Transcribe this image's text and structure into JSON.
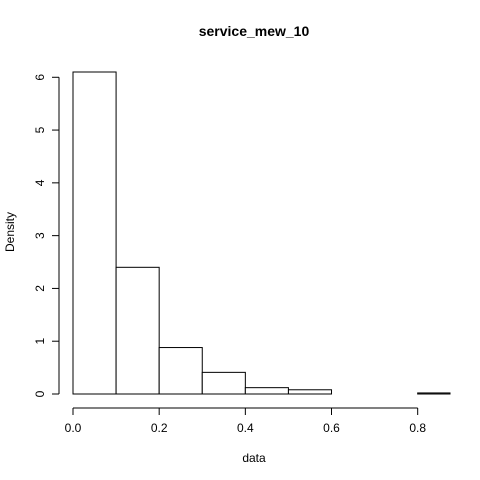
{
  "chart_data": {
    "type": "bar",
    "subtype": "histogram",
    "title": "service_mew_10",
    "xlabel": "data",
    "ylabel": "Density",
    "bins": [
      {
        "x0": 0.0,
        "x1": 0.1,
        "density": 6.1
      },
      {
        "x0": 0.1,
        "x1": 0.2,
        "density": 2.4
      },
      {
        "x0": 0.2,
        "x1": 0.3,
        "density": 0.88
      },
      {
        "x0": 0.3,
        "x1": 0.4,
        "density": 0.41
      },
      {
        "x0": 0.4,
        "x1": 0.5,
        "density": 0.12
      },
      {
        "x0": 0.5,
        "x1": 0.6,
        "density": 0.08
      },
      {
        "x0": 0.6,
        "x1": 0.7,
        "density": 0.0
      },
      {
        "x0": 0.7,
        "x1": 0.8,
        "density": 0.0
      },
      {
        "x0": 0.8,
        "x1": 0.875,
        "density": 0.02
      }
    ],
    "xlim": [
      0.0,
      0.875
    ],
    "ylim": [
      0,
      6.1
    ],
    "x_ticks": [
      0.0,
      0.2,
      0.4,
      0.6,
      0.8
    ],
    "x_tick_labels": [
      "0.0",
      "0.2",
      "0.4",
      "0.6",
      "0.8"
    ],
    "y_ticks": [
      0,
      1,
      2,
      3,
      4,
      5,
      6
    ],
    "y_tick_labels": [
      "0",
      "1",
      "2",
      "3",
      "4",
      "5",
      "6"
    ],
    "grid": false,
    "colors": {
      "bar_fill": "#ffffff",
      "bar_stroke": "#000000"
    }
  }
}
